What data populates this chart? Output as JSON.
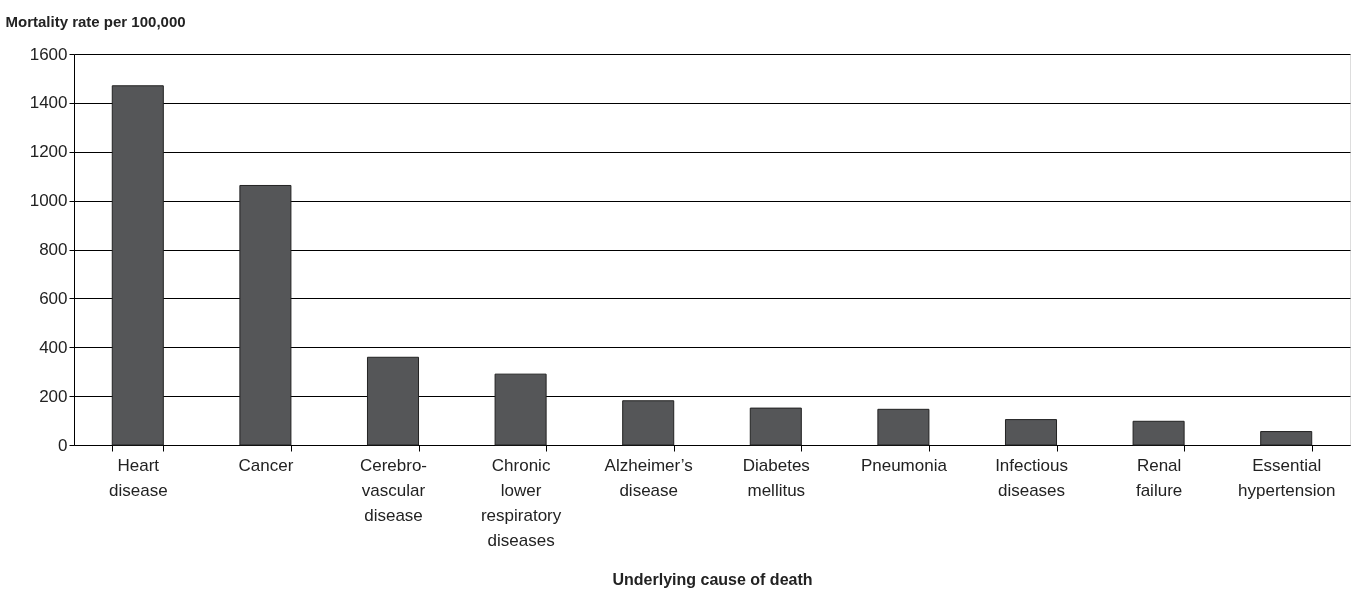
{
  "chart_data": {
    "type": "bar",
    "ylabel": "Mortality rate per 100,000",
    "xlabel": "Underlying cause of death",
    "categories": [
      "Heart\ndisease",
      "Cancer",
      "Cerebro-\nvascular\ndisease",
      "Chronic\nlower\nrespiratory\ndiseases",
      "Alzheimer’s\ndisease",
      "Diabetes\nmellitus",
      "Pneumonia",
      "Infectious\ndiseases",
      "Renal\nfailure",
      "Essential\nhypertension"
    ],
    "values": [
      1470,
      1062,
      359,
      290,
      181,
      151,
      146,
      104,
      97,
      55
    ],
    "color": "#555658",
    "ylim": [
      0,
      1600
    ],
    "yticks": [
      0,
      200,
      400,
      600,
      800,
      1000,
      1200,
      1400,
      1600
    ],
    "grid": "y"
  }
}
